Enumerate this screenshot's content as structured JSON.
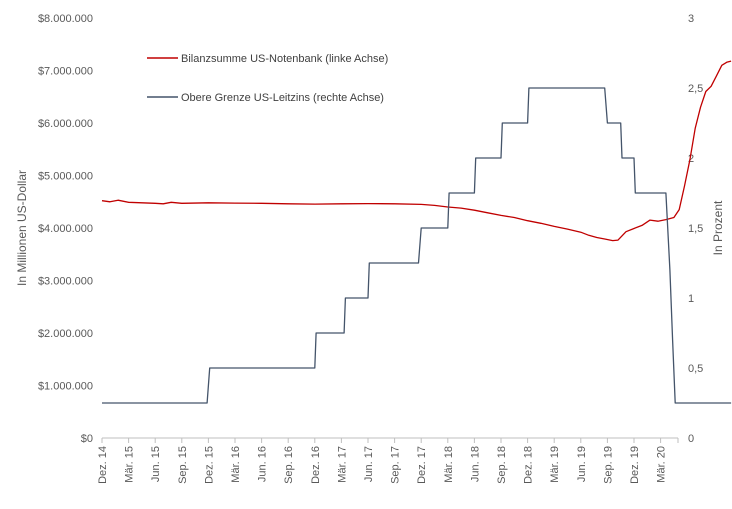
{
  "chart_data": {
    "type": "line",
    "x_ticks": [
      "Dez. 14",
      "Mär. 15",
      "Jun. 15",
      "Sep. 15",
      "Dez. 15",
      "Mär. 16",
      "Jun. 16",
      "Sep. 16",
      "Dez. 16",
      "Mär. 17",
      "Jun. 17",
      "Sep. 17",
      "Dez. 17",
      "Mär. 18",
      "Jun. 18",
      "Sep. 18",
      "Dez. 18",
      "Mär. 19",
      "Jun. 19",
      "Sep. 19",
      "Dez. 19",
      "Mär. 20"
    ],
    "y_left": {
      "label": "In Millionen US-Dollar",
      "range": [
        0,
        8000000
      ],
      "ticks": [
        "$0",
        "$1.000.000",
        "$2.000.000",
        "$3.000.000",
        "$4.000.000",
        "$5.000.000",
        "$6.000.000",
        "$7.000.000",
        "$8.000.000"
      ]
    },
    "y_right": {
      "label": "In Prozent",
      "range": [
        0,
        3
      ],
      "ticks": [
        "0",
        "0,5",
        "1",
        "1,5",
        "2",
        "2,5",
        "3"
      ]
    },
    "grid": false,
    "legend_position": "top-left",
    "colors": {
      "balance": "#c00000",
      "rate": "#44546a",
      "axis": "#bfbfbf",
      "text": "#595959"
    },
    "series": [
      {
        "name": "Bilanzsumme US-Notenbank (linke Achse)",
        "axis": "left",
        "color": "#c00000",
        "points": [
          [
            0,
            4520000
          ],
          [
            0.3,
            4500000
          ],
          [
            0.6,
            4530000
          ],
          [
            1,
            4490000
          ],
          [
            1.5,
            4480000
          ],
          [
            2,
            4470000
          ],
          [
            2.3,
            4460000
          ],
          [
            2.6,
            4490000
          ],
          [
            3,
            4470000
          ],
          [
            4,
            4480000
          ],
          [
            5,
            4475000
          ],
          [
            6,
            4470000
          ],
          [
            7,
            4460000
          ],
          [
            8,
            4455000
          ],
          [
            9,
            4460000
          ],
          [
            10,
            4465000
          ],
          [
            11,
            4460000
          ],
          [
            12,
            4450000
          ],
          [
            12.5,
            4430000
          ],
          [
            13,
            4400000
          ],
          [
            13.5,
            4380000
          ],
          [
            14,
            4340000
          ],
          [
            14.5,
            4290000
          ],
          [
            15,
            4240000
          ],
          [
            15.5,
            4200000
          ],
          [
            16,
            4140000
          ],
          [
            16.5,
            4090000
          ],
          [
            17,
            4030000
          ],
          [
            17.5,
            3980000
          ],
          [
            18,
            3920000
          ],
          [
            18.3,
            3860000
          ],
          [
            18.6,
            3820000
          ],
          [
            18.9,
            3790000
          ],
          [
            19.2,
            3760000
          ],
          [
            19.4,
            3770000
          ],
          [
            19.7,
            3930000
          ],
          [
            20,
            3990000
          ],
          [
            20.3,
            4050000
          ],
          [
            20.6,
            4150000
          ],
          [
            20.9,
            4130000
          ],
          [
            21.2,
            4160000
          ],
          [
            21.5,
            4200000
          ],
          [
            21.7,
            4350000
          ],
          [
            21.9,
            4800000
          ],
          [
            22.1,
            5300000
          ],
          [
            22.3,
            5900000
          ],
          [
            22.5,
            6300000
          ],
          [
            22.7,
            6600000
          ],
          [
            22.9,
            6700000
          ],
          [
            23.1,
            6900000
          ],
          [
            23.3,
            7100000
          ],
          [
            23.5,
            7160000
          ],
          [
            23.65,
            7180000
          ]
        ]
      },
      {
        "name": "Obere Grenze US-Leitzins (rechte Achse)",
        "axis": "right",
        "color": "#44546a",
        "points": [
          [
            0,
            0.25
          ],
          [
            3.95,
            0.25
          ],
          [
            4.05,
            0.5
          ],
          [
            8,
            0.5
          ],
          [
            8.05,
            0.75
          ],
          [
            9.1,
            0.75
          ],
          [
            9.15,
            1
          ],
          [
            10,
            1
          ],
          [
            10.05,
            1.25
          ],
          [
            11.9,
            1.25
          ],
          [
            12,
            1.5
          ],
          [
            13,
            1.5
          ],
          [
            13.05,
            1.75
          ],
          [
            14,
            1.75
          ],
          [
            14.05,
            2
          ],
          [
            15,
            2
          ],
          [
            15.05,
            2.25
          ],
          [
            16,
            2.25
          ],
          [
            16.05,
            2.5
          ],
          [
            18.9,
            2.5
          ],
          [
            19,
            2.25
          ],
          [
            19.5,
            2.25
          ],
          [
            19.55,
            2
          ],
          [
            20,
            2
          ],
          [
            20.05,
            1.75
          ],
          [
            21.2,
            1.75
          ],
          [
            21.35,
            1.2
          ],
          [
            21.45,
            0.7
          ],
          [
            21.55,
            0.25
          ],
          [
            23.65,
            0.25
          ]
        ]
      }
    ]
  }
}
